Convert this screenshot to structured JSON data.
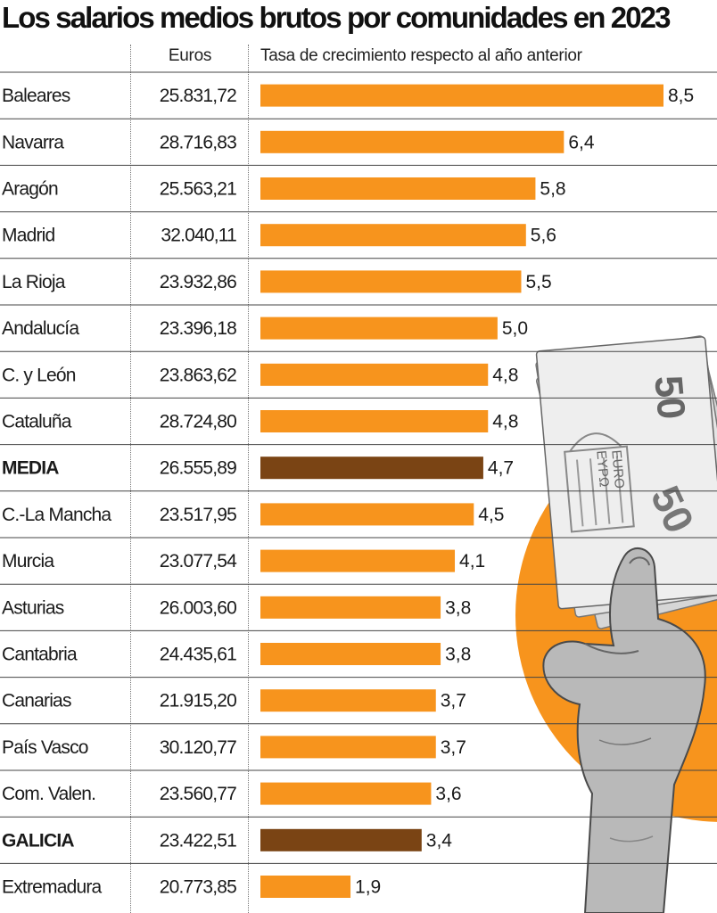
{
  "title": "Los salarios medios brutos por comunidades en 2023",
  "columns": {
    "euros": "Euros",
    "growth": "Tasa de crecimiento respecto al año anterior"
  },
  "colors": {
    "bar": "#F7941D",
    "highlight": "#7A4414",
    "circle": "#F7941D",
    "rule": "#444444"
  },
  "illustration": {
    "icon": "hand-holding-euro-banknotes-icon",
    "banknote_text": [
      "50",
      "EURO",
      "EYPΩ"
    ]
  },
  "chart_data": {
    "type": "bar",
    "orientation": "horizontal",
    "title": "Los salarios medios brutos por comunidades en 2023",
    "xlabel": "Tasa de crecimiento respecto al año anterior",
    "xlim": [
      0,
      8.5
    ],
    "grid": false,
    "categories": [
      "Baleares",
      "Navarra",
      "Aragón",
      "Madrid",
      "La Rioja",
      "Andalucía",
      "C. y León",
      "Cataluña",
      "MEDIA",
      "C.-La Mancha",
      "Murcia",
      "Asturias",
      "Cantabria",
      "Canarias",
      "País Vasco",
      "Com. Valen.",
      "GALICIA",
      "Extremadura"
    ],
    "values": [
      8.5,
      6.4,
      5.8,
      5.6,
      5.5,
      5.0,
      4.8,
      4.8,
      4.7,
      4.5,
      4.1,
      3.8,
      3.8,
      3.7,
      3.7,
      3.6,
      3.4,
      1.9
    ],
    "value_labels": [
      "8,5",
      "6,4",
      "5,8",
      "5,6",
      "5,5",
      "5,0",
      "4,8",
      "4,8",
      "4,7",
      "4,5",
      "4,1",
      "3,8",
      "3,8",
      "3,7",
      "3,7",
      "3,6",
      "3,4",
      "1,9"
    ],
    "euros": [
      "25.831,72",
      "28.716,83",
      "25.563,21",
      "32.040,11",
      "23.932,86",
      "23.396,18",
      "23.863,62",
      "28.724,80",
      "26.555,89",
      "23.517,95",
      "23.077,54",
      "26.003,60",
      "24.435,61",
      "21.915,20",
      "30.120,77",
      "23.560,77",
      "23.422,51",
      "20.773,85"
    ],
    "highlighted": [
      "MEDIA",
      "GALICIA"
    ]
  }
}
